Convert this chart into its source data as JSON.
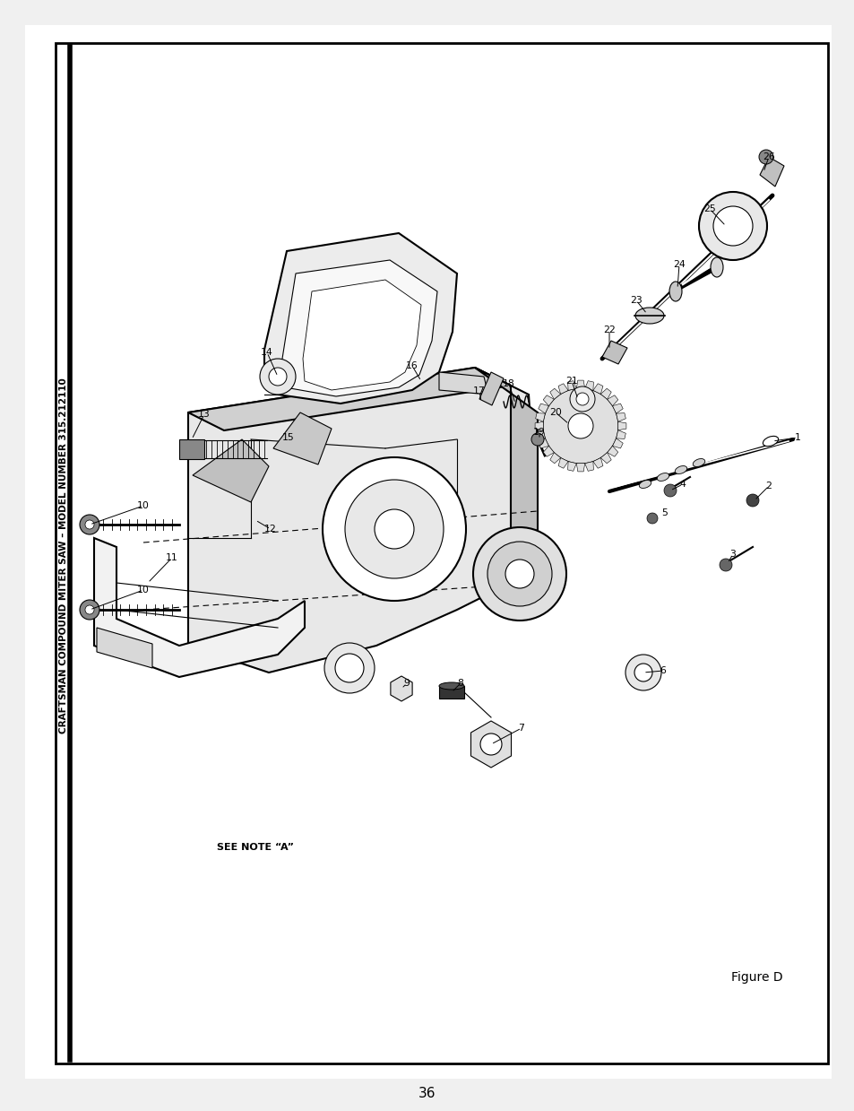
{
  "page_number": "36",
  "title_text": "CRAFTSMAN COMPOUND MITER SAW – MODEL NUMBER 315.212110",
  "figure_label": "Figure D",
  "note_text": "SEE NOTE “A”",
  "background_color": "#ffffff",
  "border_color": "#000000",
  "text_color": "#000000",
  "page_bg": "#f0f0f0",
  "inner_bg": "#ffffff",
  "lw_main": 1.5,
  "lw_thin": 0.8,
  "lw_leader": 0.7
}
